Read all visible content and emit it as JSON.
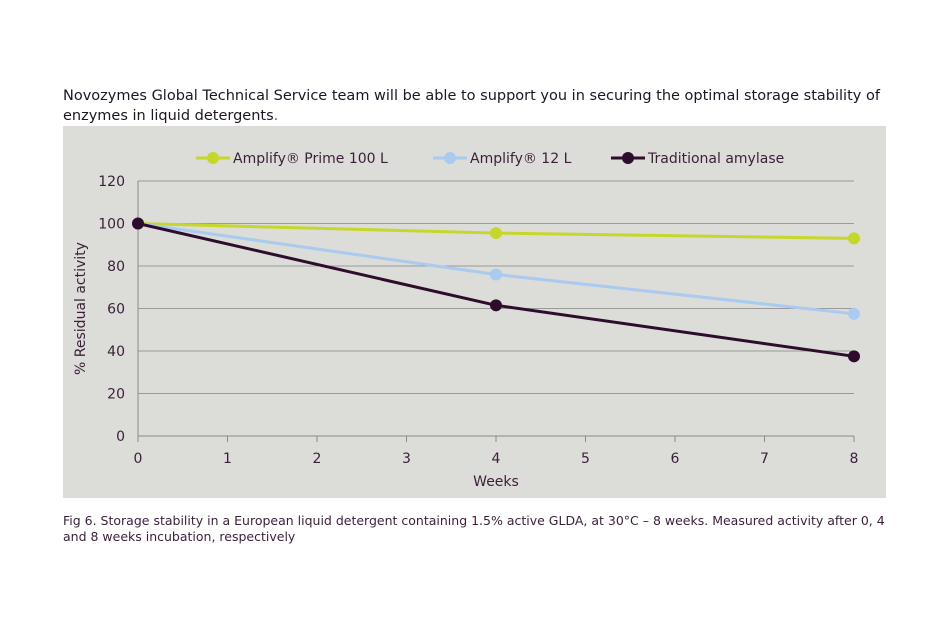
{
  "intro": {
    "text": "Novozymes Global Technical Service team will be able to support you in securing the optimal storage stability of enzymes in liquid detergents",
    "period": "."
  },
  "caption": "Fig 6. Storage stability in a European liquid detergent containing 1.5% active GLDA, at 30°C – 8 weeks. Measured activity after 0, 4 and 8 weeks incubation, respectively",
  "chart_data": {
    "type": "line",
    "title": "",
    "xlabel": "Weeks",
    "ylabel": "% Residual activity",
    "xlim": [
      0,
      8
    ],
    "ylim": [
      0,
      120
    ],
    "xticks": [
      0,
      1,
      2,
      3,
      4,
      5,
      6,
      7,
      8
    ],
    "yticks": [
      0,
      20,
      40,
      60,
      80,
      100,
      120
    ],
    "grid": "horizontal",
    "legend": "top",
    "series": [
      {
        "name": "Amplify® Prime 100 L",
        "color": "#c5d82a",
        "x": [
          0,
          4,
          8
        ],
        "y": [
          100,
          95.5,
          93
        ]
      },
      {
        "name": "Amplify® 12 L",
        "color": "#a9cbef",
        "x": [
          0,
          4,
          8
        ],
        "y": [
          100,
          76,
          57.5
        ]
      },
      {
        "name": "Traditional amylase",
        "color": "#2e0c2c",
        "x": [
          0,
          4,
          8
        ],
        "y": [
          100,
          61.5,
          37.5
        ]
      }
    ]
  },
  "colors": {
    "panel": "#dcdcd8",
    "text": "#3b1f3a",
    "axis": "#8a8a8a",
    "grid": "#9a9a9a"
  }
}
